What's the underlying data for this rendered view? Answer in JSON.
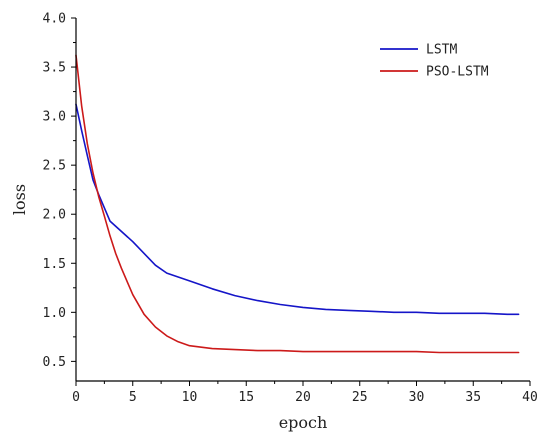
{
  "chart_data": {
    "type": "line",
    "xlabel": "epoch",
    "ylabel": "loss",
    "xlim": [
      0,
      40
    ],
    "ylim": [
      0.3,
      4.0
    ],
    "xticks": [
      0,
      5,
      10,
      15,
      20,
      25,
      30,
      35,
      40
    ],
    "yticks": [
      0.5,
      1.0,
      1.5,
      2.0,
      2.5,
      3.0,
      3.5,
      4.0
    ],
    "xtick_labels": [
      "0",
      "5",
      "10",
      "15",
      "20",
      "25",
      "30",
      "35",
      "40"
    ],
    "ytick_labels": [
      "0.5",
      "1.0",
      "1.5",
      "2.0",
      "2.5",
      "3.0",
      "3.5",
      "4.0"
    ],
    "grid": false,
    "legend_position": "top-right",
    "series": [
      {
        "name": "LSTM",
        "color": "#1515c8",
        "x": [
          0,
          0.5,
          1,
          1.5,
          2,
          3,
          5,
          7,
          8,
          10,
          12,
          14,
          16,
          18,
          20,
          22,
          24,
          26,
          28,
          30,
          32,
          34,
          36,
          38,
          39
        ],
        "y": [
          3.12,
          2.85,
          2.6,
          2.35,
          2.2,
          1.93,
          1.72,
          1.48,
          1.4,
          1.32,
          1.24,
          1.17,
          1.12,
          1.08,
          1.05,
          1.03,
          1.02,
          1.01,
          1.0,
          1.0,
          0.99,
          0.99,
          0.99,
          0.98,
          0.98
        ]
      },
      {
        "name": "PSO-LSTM",
        "color": "#cc1a1a",
        "x": [
          0,
          0.5,
          1,
          1.5,
          2,
          2.5,
          3,
          3.5,
          4,
          5,
          6,
          7,
          8,
          9,
          10,
          12,
          14,
          16,
          18,
          20,
          25,
          30,
          32,
          35,
          39
        ],
        "y": [
          3.62,
          3.1,
          2.72,
          2.42,
          2.18,
          1.98,
          1.78,
          1.6,
          1.45,
          1.18,
          0.98,
          0.85,
          0.76,
          0.7,
          0.66,
          0.63,
          0.62,
          0.61,
          0.61,
          0.6,
          0.6,
          0.6,
          0.59,
          0.59,
          0.59
        ]
      }
    ]
  }
}
